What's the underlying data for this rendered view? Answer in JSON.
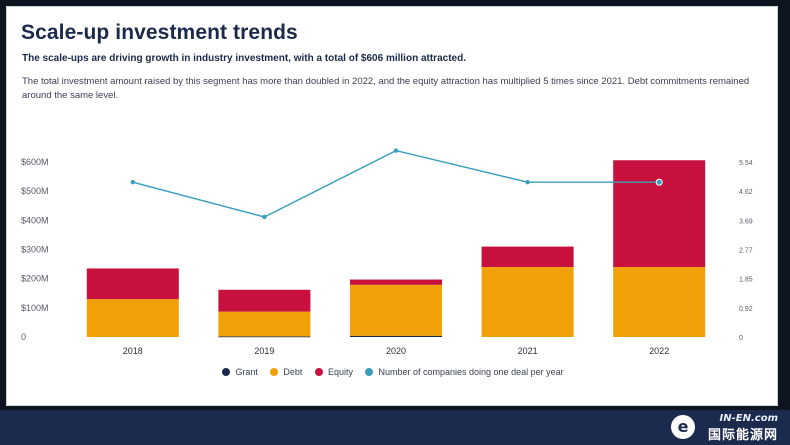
{
  "header": {
    "title": "Scale-up investment trends",
    "subtitle": "The scale-ups are driving growth in industry investment, with a total of $606 million attracted.",
    "description": "The total investment amount raised by this segment has more than doubled in 2022, and the equity attraction has multiplied 5 times since 2021. Debt commitments remained around the same level."
  },
  "colors": {
    "grant": "#1b2a4a",
    "debt": "#f2a007",
    "equity": "#c8103f",
    "line": "#3a9dbb",
    "axis_text": "#555b66",
    "footer": "#1c2b4d"
  },
  "chart_data": {
    "type": "bar",
    "stacked": true,
    "categories": [
      "2018",
      "2019",
      "2020",
      "2021",
      "2022"
    ],
    "series": [
      {
        "name": "Grant",
        "values": [
          0,
          2,
          4,
          0,
          0
        ]
      },
      {
        "name": "Debt",
        "values": [
          130,
          85,
          175,
          240,
          240
        ]
      },
      {
        "name": "Equity",
        "values": [
          105,
          75,
          18,
          70,
          366
        ]
      }
    ],
    "line_series": {
      "name": "Number of companies doing one deal per year",
      "values": [
        4.9,
        3.8,
        5.9,
        4.9,
        4.9
      ],
      "axis": "right"
    },
    "y_left": {
      "ticks": [
        0,
        100,
        200,
        300,
        400,
        500,
        600
      ],
      "labels": [
        "0",
        "$100M",
        "$200M",
        "$300M",
        "$400M",
        "$500M",
        "$600M"
      ],
      "range": [
        0,
        600
      ]
    },
    "y_right": {
      "ticks": [
        0,
        0.92,
        1.85,
        2.77,
        3.69,
        4.62,
        5.54
      ],
      "labels": [
        "0",
        "0.92",
        "1.85",
        "2.77",
        "3.69",
        "4.62",
        "5.54"
      ],
      "range": [
        0,
        5.54
      ]
    },
    "legend": [
      "Grant",
      "Debt",
      "Equity",
      "Number of companies doing one deal per year"
    ],
    "legend_position": "bottom"
  },
  "watermark": {
    "line1": "IN-EN.com",
    "line2": "国际能源网",
    "icon": "e"
  }
}
